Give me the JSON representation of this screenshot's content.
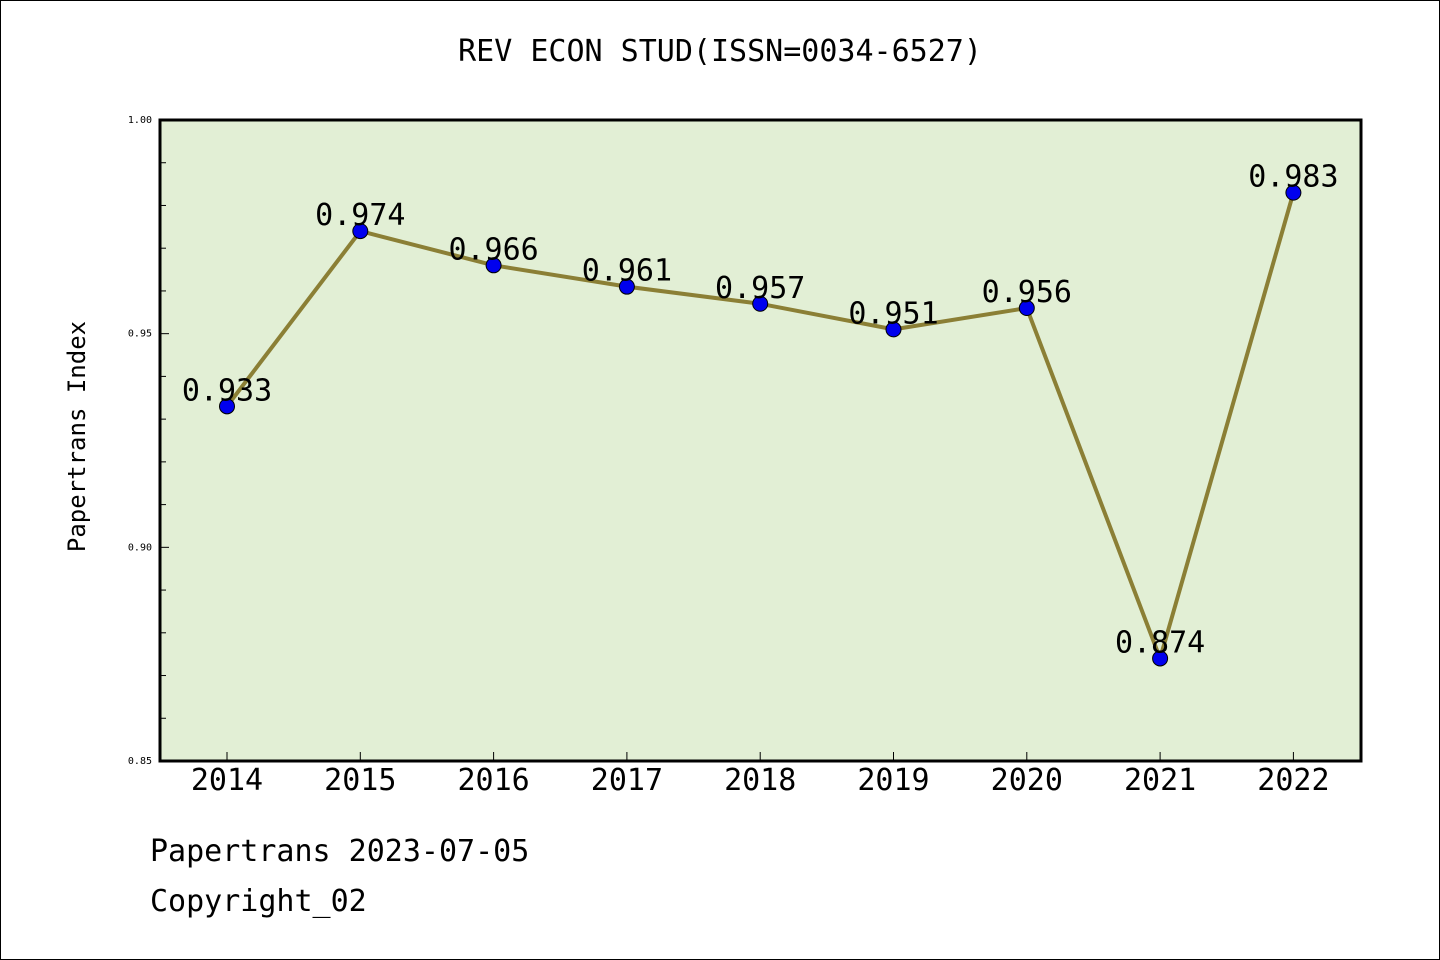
{
  "chart_data": {
    "type": "line",
    "title": "REV ECON STUD(ISSN=0034-6527)",
    "xlabel": "",
    "ylabel": "Papertrans Index",
    "categories": [
      "2014",
      "2015",
      "2016",
      "2017",
      "2018",
      "2019",
      "2020",
      "2021",
      "2022"
    ],
    "series": [
      {
        "values": [
          0.933,
          0.974,
          0.966,
          0.961,
          0.957,
          0.951,
          0.956,
          0.874,
          0.983
        ],
        "labels": [
          "0.933",
          "0.974",
          "0.966",
          "0.961",
          "0.957",
          "0.951",
          "0.956",
          "0.874",
          "0.983"
        ]
      }
    ],
    "ylim": [
      0.85,
      1.0
    ],
    "yticks": [
      "0.85",
      "0.90",
      "0.95",
      "1.00"
    ],
    "grid": false,
    "legend": "none"
  },
  "colors": {
    "plot_background": "#e2efd5",
    "line": "#8b7f35",
    "marker": "#0000ee",
    "axis": "#000000"
  },
  "footer": {
    "line1": "Papertrans 2023-07-05",
    "line2": "Copyright_02"
  }
}
